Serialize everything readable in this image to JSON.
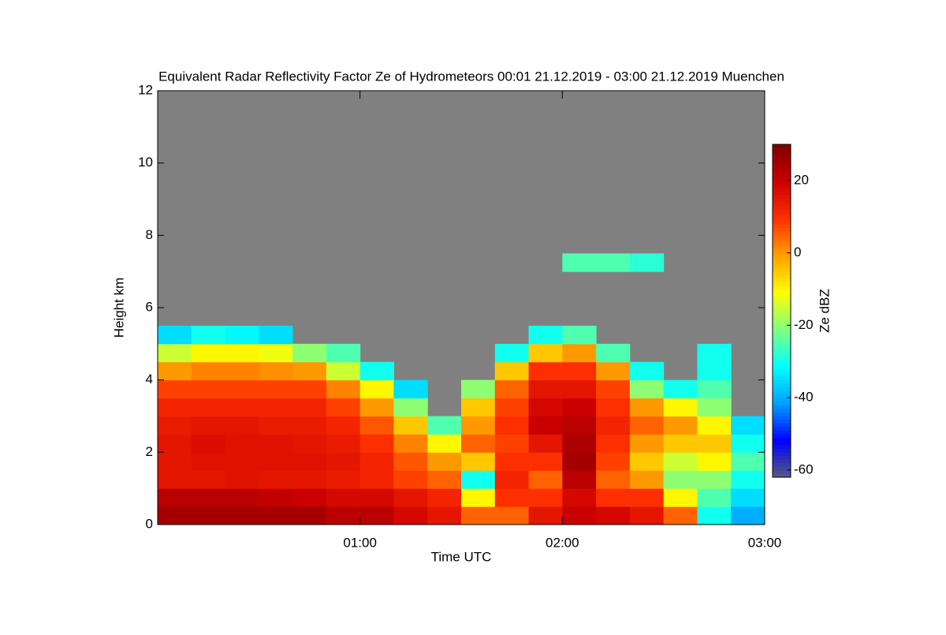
{
  "chart_data": {
    "type": "heatmap",
    "title": "Equivalent Radar Reflectivity Factor Ze of Hydrometeors   00:01 21.12.2019 - 03:00 21.12.2019 Muenchen",
    "x_label": "Time UTC",
    "y_label": "Height km",
    "colorbar_label": "Ze dBZ",
    "x": [
      0,
      10,
      20,
      30,
      40,
      50,
      60,
      70,
      80,
      90,
      100,
      110,
      120,
      130,
      140,
      150,
      160,
      170,
      180
    ],
    "y": [
      0,
      0.5,
      1,
      1.5,
      2,
      2.5,
      3,
      3.5,
      4,
      4.5,
      5,
      5.5,
      6,
      6.5,
      7,
      7.5
    ],
    "values": [
      [
        25,
        22,
        15,
        15,
        15,
        14,
        12,
        8,
        0,
        -15,
        -35,
        null,
        null,
        null,
        null
      ],
      [
        25,
        22,
        15,
        16,
        17,
        15,
        12,
        8,
        2,
        -10,
        -30,
        null,
        null,
        null,
        null
      ],
      [
        25,
        22,
        16,
        16,
        16,
        15,
        12,
        8,
        2,
        -10,
        -32,
        null,
        null,
        null,
        null
      ],
      [
        25,
        21,
        15,
        16,
        16,
        14,
        12,
        8,
        1,
        -12,
        -35,
        null,
        null,
        null,
        null
      ],
      [
        25,
        20,
        15,
        16,
        15,
        14,
        12,
        8,
        0,
        -20,
        null,
        null,
        null,
        null,
        null
      ],
      [
        22,
        18,
        14,
        15,
        14,
        12,
        8,
        2,
        -15,
        -25,
        null,
        null,
        null,
        null,
        null
      ],
      [
        22,
        18,
        12,
        12,
        10,
        6,
        0,
        -10,
        -30,
        null,
        null,
        null,
        null,
        null,
        null
      ],
      [
        18,
        15,
        8,
        6,
        2,
        -5,
        -20,
        -35,
        null,
        null,
        null,
        null,
        null,
        null,
        null
      ],
      [
        15,
        12,
        5,
        0,
        -10,
        -25,
        null,
        null,
        null,
        null,
        null,
        null,
        null,
        null,
        null
      ],
      [
        5,
        -10,
        -30,
        -5,
        5,
        0,
        -5,
        -20,
        null,
        null,
        null,
        null,
        null,
        null,
        null
      ],
      [
        5,
        10,
        12,
        10,
        8,
        10,
        8,
        5,
        -5,
        -30,
        null,
        null,
        null,
        null,
        null
      ],
      [
        15,
        10,
        5,
        10,
        15,
        20,
        18,
        15,
        10,
        -5,
        -30,
        null,
        null,
        null,
        null
      ],
      [
        20,
        18,
        22,
        25,
        24,
        22,
        20,
        15,
        10,
        0,
        -25,
        null,
        null,
        null,
        -25
      ],
      [
        18,
        10,
        5,
        8,
        10,
        12,
        10,
        8,
        0,
        -25,
        null,
        null,
        null,
        null,
        -25
      ],
      [
        15,
        10,
        0,
        -5,
        0,
        5,
        0,
        -20,
        -30,
        null,
        null,
        null,
        null,
        null,
        -28
      ],
      [
        5,
        -10,
        -20,
        -15,
        -5,
        0,
        -10,
        -30,
        null,
        null,
        null,
        null,
        null,
        null,
        null
      ],
      [
        -30,
        -25,
        -20,
        -10,
        -5,
        -10,
        -20,
        -25,
        -30,
        -30,
        null,
        null,
        null,
        null,
        null
      ],
      [
        -40,
        -35,
        -30,
        -25,
        -30,
        -35,
        null,
        null,
        null,
        null,
        null,
        null,
        null,
        null,
        null
      ]
    ],
    "xlim": [
      0,
      180
    ],
    "xticks": [
      {
        "value": 60,
        "label": "01:00"
      },
      {
        "value": 120,
        "label": "02:00"
      },
      {
        "value": 180,
        "label": "03:00"
      }
    ],
    "ylim": [
      0,
      12
    ],
    "yticks": [
      0,
      2,
      4,
      6,
      8,
      10,
      12
    ],
    "clim": [
      -62,
      30
    ],
    "cticks": [
      -60,
      -40,
      -20,
      0,
      20
    ],
    "colormap": [
      "#555a80",
      "#0000ff",
      "#00a0ff",
      "#00ffff",
      "#80ff80",
      "#ffff00",
      "#ffa000",
      "#ff3000",
      "#cc0000",
      "#800000"
    ],
    "background": "#808080"
  }
}
